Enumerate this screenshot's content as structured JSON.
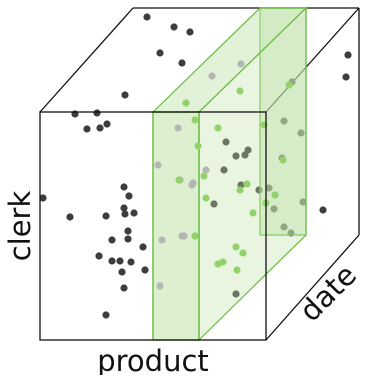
{
  "labels": {
    "x_axis": "product",
    "y_axis": "clerk",
    "z_axis": "date"
  },
  "colors": {
    "cube_edge": "#111111",
    "point": "#3d3d3d",
    "point_faded": "#b5b5b5",
    "point_highlight": "#92d26b",
    "slice_fill": "#bfe3aa",
    "slice_edge": "#66bb3d"
  },
  "chart_data": {
    "type": "scatter",
    "dimensions": [
      "product",
      "clerk",
      "date"
    ],
    "highlighted_slice": {
      "dimension": "product",
      "description": "single product slice across all clerks and dates"
    }
  }
}
